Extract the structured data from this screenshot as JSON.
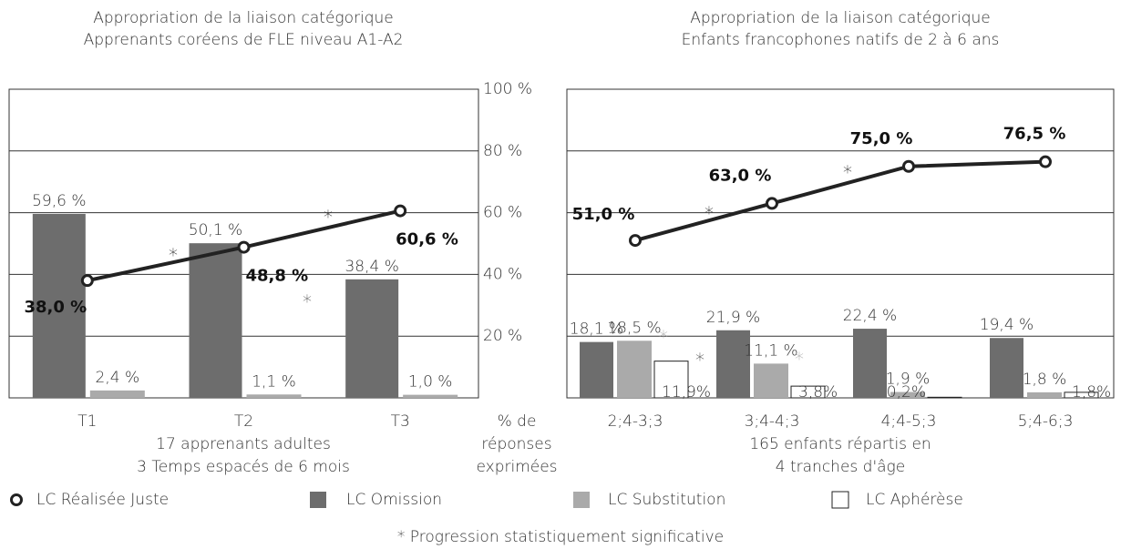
{
  "chart_data": [
    {
      "type": "bar_line",
      "title": "Appropriation de la liaison catégorique",
      "subtitle": "Apprenants coréens de FLE niveau A1-A2",
      "categories": [
        "T1",
        "T2",
        "T3"
      ],
      "x_label": [
        "17 apprenants adultes",
        "3 Temps espacés de 6 mois"
      ],
      "y_label": [
        "% de",
        "réponses",
        "exprimées"
      ],
      "ylim": [
        0,
        100
      ],
      "yticks": [
        {
          "value": 0,
          "label": ""
        },
        {
          "value": 20,
          "label": "20 %"
        },
        {
          "value": 40,
          "label": "40 %"
        },
        {
          "value": 60,
          "label": "60 %"
        },
        {
          "value": 80,
          "label": "80 %"
        },
        {
          "value": 100,
          "label": "100 %"
        }
      ],
      "line": {
        "color": "#222222",
        "values": [
          38.0,
          48.8,
          60.6
        ],
        "value_labels": [
          "38,0 %",
          "48,8 %",
          "60,6 %"
        ]
      },
      "series": [
        {
          "color": "#6d6d6d",
          "values": [
            59.6,
            50.1,
            38.4
          ],
          "value_labels": [
            "59,6 %",
            "50,1 %",
            "38,4 %"
          ]
        },
        {
          "color": "#aaaaaa",
          "values": [
            2.4,
            1.1,
            1.0
          ],
          "value_labels": [
            "2,4 %",
            "1,1 %",
            "1,0 %"
          ]
        }
      ],
      "annotations": [
        {
          "text": "*",
          "color": "#222222"
        },
        {
          "text": "*",
          "color": "#222222"
        },
        {
          "text": "*",
          "color": "#555555"
        }
      ]
    },
    {
      "type": "bar_line",
      "title": "Appropriation de la liaison catégorique",
      "subtitle": "Enfants francophones natifs de 2 à 6 ans",
      "categories": [
        "2;4-3;3",
        "3;4-4;3",
        "4;4-5;3",
        "5;4-6;3"
      ],
      "x_label": [
        "165 enfants répartis en",
        "4 tranches d'âge"
      ],
      "ylim": [
        0,
        100
      ],
      "line": {
        "name": "LC Réalisée Juste",
        "color": "#222222",
        "values": [
          51.0,
          63.0,
          75.0,
          76.5
        ],
        "value_labels": [
          "51,0 %",
          "63,0 %",
          "75,0 %",
          "76,5 %"
        ]
      },
      "series": [
        {
          "name": "LC Omission",
          "color": "#6d6d6d",
          "values": [
            18.1,
            21.9,
            22.4,
            19.4
          ],
          "value_labels": [
            "18,1 %",
            "21,9 %",
            "22,4 %",
            "19,4 %"
          ]
        },
        {
          "name": "LC Substitution",
          "color": "#aaaaaa",
          "values": [
            18.5,
            11.1,
            1.9,
            1.8
          ],
          "value_labels": [
            "18,5 %",
            "11,1 %",
            "1,9 %",
            "1,8 %"
          ]
        },
        {
          "name": "LC Aphérèse",
          "color": "#ffffff",
          "values": [
            11.9,
            3.8,
            0.2,
            1.8
          ],
          "value_labels": [
            "11,9%",
            "3,8%",
            "0,2%",
            "1,8%"
          ]
        }
      ],
      "annotations": [
        {
          "text": "*",
          "color": "#222222"
        },
        {
          "text": "*",
          "color": "#222222"
        },
        {
          "text": "*",
          "color": "#aaaaaa"
        },
        {
          "text": "*",
          "color": "#aaaaaa"
        },
        {
          "text": "*",
          "color": "#444444"
        }
      ]
    }
  ],
  "footnote": "* Progression statistiquement significative"
}
